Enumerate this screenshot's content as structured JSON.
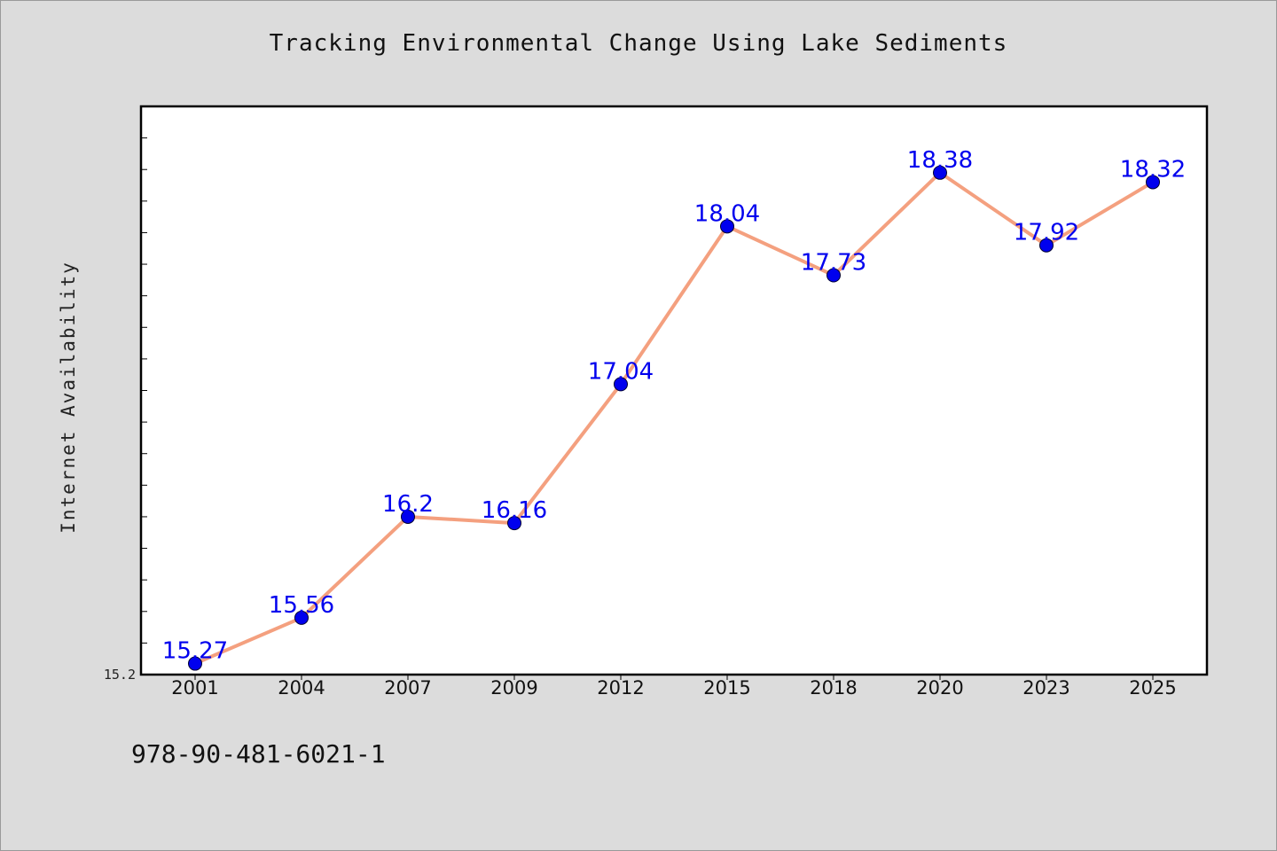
{
  "chart_data": {
    "type": "line",
    "title": "Tracking Environmental Change Using Lake Sediments",
    "xlabel": "",
    "ylabel": "Internet Availability",
    "categories": [
      "2001",
      "2004",
      "2007",
      "2009",
      "2012",
      "2015",
      "2018",
      "2020",
      "2023",
      "2025"
    ],
    "series": [
      {
        "values": [
          15.27,
          15.56,
          16.2,
          16.16,
          17.04,
          18.04,
          17.73,
          18.38,
          17.92,
          18.32
        ],
        "data_labels": [
          "15.27",
          "15.56",
          "16.2",
          "16.16",
          "17.04",
          "18.04",
          "17.73",
          "18.38",
          "17.92",
          "18.32"
        ]
      }
    ],
    "y_tick_labels": [
      "15.2"
    ],
    "ylim": [
      15.2,
      18.8
    ],
    "grid": false,
    "legend": "none"
  },
  "footer": {
    "code": "978-90-481-6021-1"
  },
  "colors": {
    "background": "#dcdcdc",
    "plot_background": "#ffffff",
    "line": "#f4a07f",
    "marker": "#0000ee",
    "data_label": "#0000ee",
    "axis": "#000000"
  }
}
